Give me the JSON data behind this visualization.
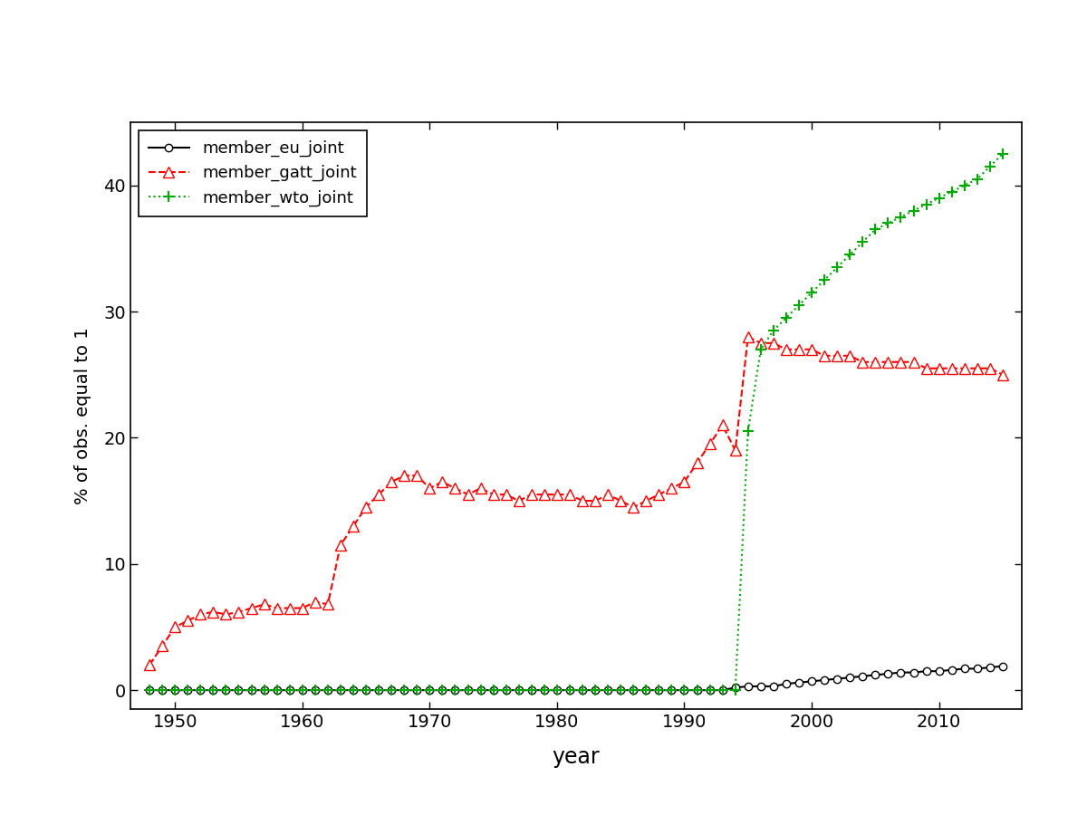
{
  "title": "",
  "xlabel": "year",
  "ylabel": "% of obs. equal to 1",
  "xlim": [
    1946.5,
    2016.5
  ],
  "ylim": [
    -1.5,
    45
  ],
  "yticks": [
    0,
    10,
    20,
    30,
    40
  ],
  "xticks": [
    1950,
    1960,
    1970,
    1980,
    1990,
    2000,
    2010
  ],
  "background_color": "#ffffff",
  "eu_color": "#000000",
  "gatt_color": "#ff0000",
  "wto_color": "#00aa00",
  "legend_labels": [
    "member_eu_joint",
    "member_gatt_joint",
    "member_wto_joint"
  ],
  "gatt_data": {
    "years": [
      1948,
      1949,
      1950,
      1951,
      1952,
      1953,
      1954,
      1955,
      1956,
      1957,
      1958,
      1959,
      1960,
      1961,
      1962,
      1963,
      1964,
      1965,
      1966,
      1967,
      1968,
      1969,
      1970,
      1971,
      1972,
      1973,
      1974,
      1975,
      1976,
      1977,
      1978,
      1979,
      1980,
      1981,
      1982,
      1983,
      1984,
      1985,
      1986,
      1987,
      1988,
      1989,
      1990,
      1991,
      1992,
      1993,
      1994,
      1995,
      1996,
      1997,
      1998,
      1999,
      2000,
      2001,
      2002,
      2003,
      2004,
      2005,
      2006,
      2007,
      2008,
      2009,
      2010,
      2011,
      2012,
      2013,
      2014,
      2015
    ],
    "values": [
      2.0,
      3.5,
      5.0,
      5.5,
      6.0,
      6.2,
      6.0,
      6.2,
      6.5,
      6.8,
      6.5,
      6.5,
      6.5,
      7.0,
      6.8,
      11.5,
      13.0,
      14.5,
      15.5,
      16.5,
      17.0,
      17.0,
      16.0,
      16.5,
      16.0,
      15.5,
      16.0,
      15.5,
      15.5,
      15.0,
      15.5,
      15.5,
      15.5,
      15.5,
      15.0,
      15.0,
      15.5,
      15.0,
      14.5,
      15.0,
      15.5,
      16.0,
      16.5,
      18.0,
      19.5,
      21.0,
      19.0,
      28.0,
      27.5,
      27.5,
      27.0,
      27.0,
      27.0,
      26.5,
      26.5,
      26.5,
      26.0,
      26.0,
      26.0,
      26.0,
      26.0,
      25.5,
      25.5,
      25.5,
      25.5,
      25.5,
      25.5,
      25.0
    ]
  },
  "wto_data": {
    "years": [
      1948,
      1949,
      1950,
      1951,
      1952,
      1953,
      1954,
      1955,
      1956,
      1957,
      1958,
      1959,
      1960,
      1961,
      1962,
      1963,
      1964,
      1965,
      1966,
      1967,
      1968,
      1969,
      1970,
      1971,
      1972,
      1973,
      1974,
      1975,
      1976,
      1977,
      1978,
      1979,
      1980,
      1981,
      1982,
      1983,
      1984,
      1985,
      1986,
      1987,
      1988,
      1989,
      1990,
      1991,
      1992,
      1993,
      1994,
      1995,
      1996,
      1997,
      1998,
      1999,
      2000,
      2001,
      2002,
      2003,
      2004,
      2005,
      2006,
      2007,
      2008,
      2009,
      2010,
      2011,
      2012,
      2013,
      2014,
      2015
    ],
    "values": [
      0.0,
      0.0,
      0.0,
      0.0,
      0.0,
      0.0,
      0.0,
      0.0,
      0.0,
      0.0,
      0.0,
      0.0,
      0.0,
      0.0,
      0.0,
      0.0,
      0.0,
      0.0,
      0.0,
      0.0,
      0.0,
      0.0,
      0.0,
      0.0,
      0.0,
      0.0,
      0.0,
      0.0,
      0.0,
      0.0,
      0.0,
      0.0,
      0.0,
      0.0,
      0.0,
      0.0,
      0.0,
      0.0,
      0.0,
      0.0,
      0.0,
      0.0,
      0.0,
      0.0,
      0.0,
      0.0,
      0.0,
      20.5,
      27.0,
      28.5,
      29.5,
      30.5,
      31.5,
      32.5,
      33.5,
      34.5,
      35.5,
      36.5,
      37.0,
      37.5,
      38.0,
      38.5,
      39.0,
      39.5,
      40.0,
      40.5,
      41.5,
      42.5
    ]
  },
  "eu_data": {
    "years": [
      1948,
      1949,
      1950,
      1951,
      1952,
      1953,
      1954,
      1955,
      1956,
      1957,
      1958,
      1959,
      1960,
      1961,
      1962,
      1963,
      1964,
      1965,
      1966,
      1967,
      1968,
      1969,
      1970,
      1971,
      1972,
      1973,
      1974,
      1975,
      1976,
      1977,
      1978,
      1979,
      1980,
      1981,
      1982,
      1983,
      1984,
      1985,
      1986,
      1987,
      1988,
      1989,
      1990,
      1991,
      1992,
      1993,
      1994,
      1995,
      1996,
      1997,
      1998,
      1999,
      2000,
      2001,
      2002,
      2003,
      2004,
      2005,
      2006,
      2007,
      2008,
      2009,
      2010,
      2011,
      2012,
      2013,
      2014,
      2015
    ],
    "values": [
      0.0,
      0.0,
      0.0,
      0.0,
      0.0,
      0.0,
      0.0,
      0.0,
      0.0,
      0.0,
      0.0,
      0.0,
      0.0,
      0.0,
      0.0,
      0.0,
      0.0,
      0.0,
      0.0,
      0.0,
      0.0,
      0.0,
      0.0,
      0.0,
      0.0,
      0.0,
      0.0,
      0.0,
      0.0,
      0.0,
      0.0,
      0.0,
      0.0,
      0.0,
      0.0,
      0.0,
      0.0,
      0.0,
      0.0,
      0.0,
      0.0,
      0.0,
      0.0,
      0.0,
      0.0,
      0.0,
      0.2,
      0.3,
      0.3,
      0.3,
      0.5,
      0.6,
      0.7,
      0.8,
      0.9,
      1.0,
      1.1,
      1.2,
      1.3,
      1.4,
      1.4,
      1.5,
      1.5,
      1.6,
      1.7,
      1.7,
      1.8,
      1.9
    ]
  }
}
